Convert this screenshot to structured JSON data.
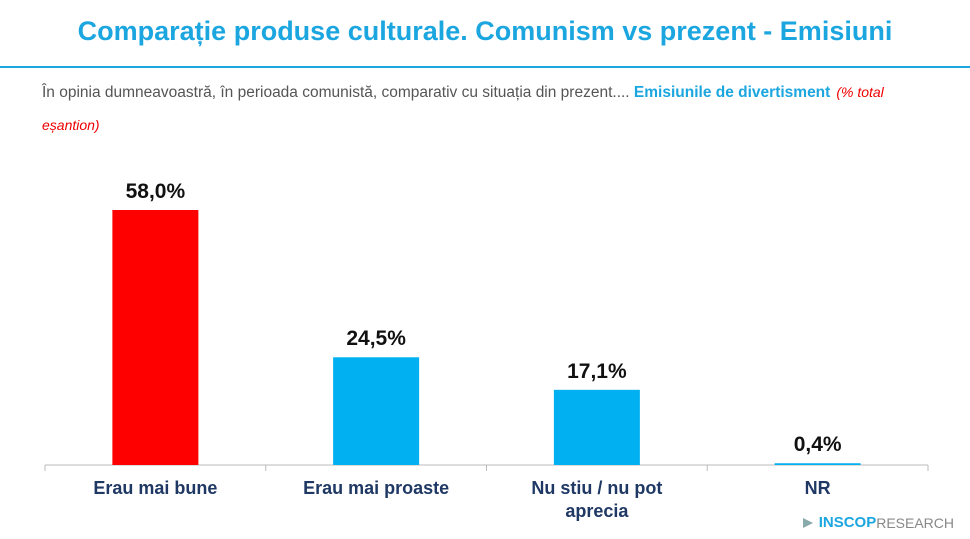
{
  "chart_data": {
    "type": "bar",
    "title": "Comparație produse culturale. Comunism vs prezent - Emisiuni",
    "question": "În opinia dumneavoastră, în perioada comunistă, comparativ cu situația din prezent....",
    "question_highlight": "Emisiunile de divertisment",
    "note": "(% total eșantion)",
    "categories": [
      "Erau mai bune",
      "Erau mai proaste",
      "Nu stiu / nu pot aprecia",
      "NR"
    ],
    "values": [
      58.0,
      24.5,
      17.1,
      0.4
    ],
    "value_labels": [
      "58,0%",
      "24,5%",
      "17,1%",
      "0,4%"
    ],
    "colors": [
      "#ff0000",
      "#00b0f0",
      "#00b0f0",
      "#00b0f0"
    ],
    "brand": "INSCOP",
    "brand_suffix": "RESEARCH"
  }
}
